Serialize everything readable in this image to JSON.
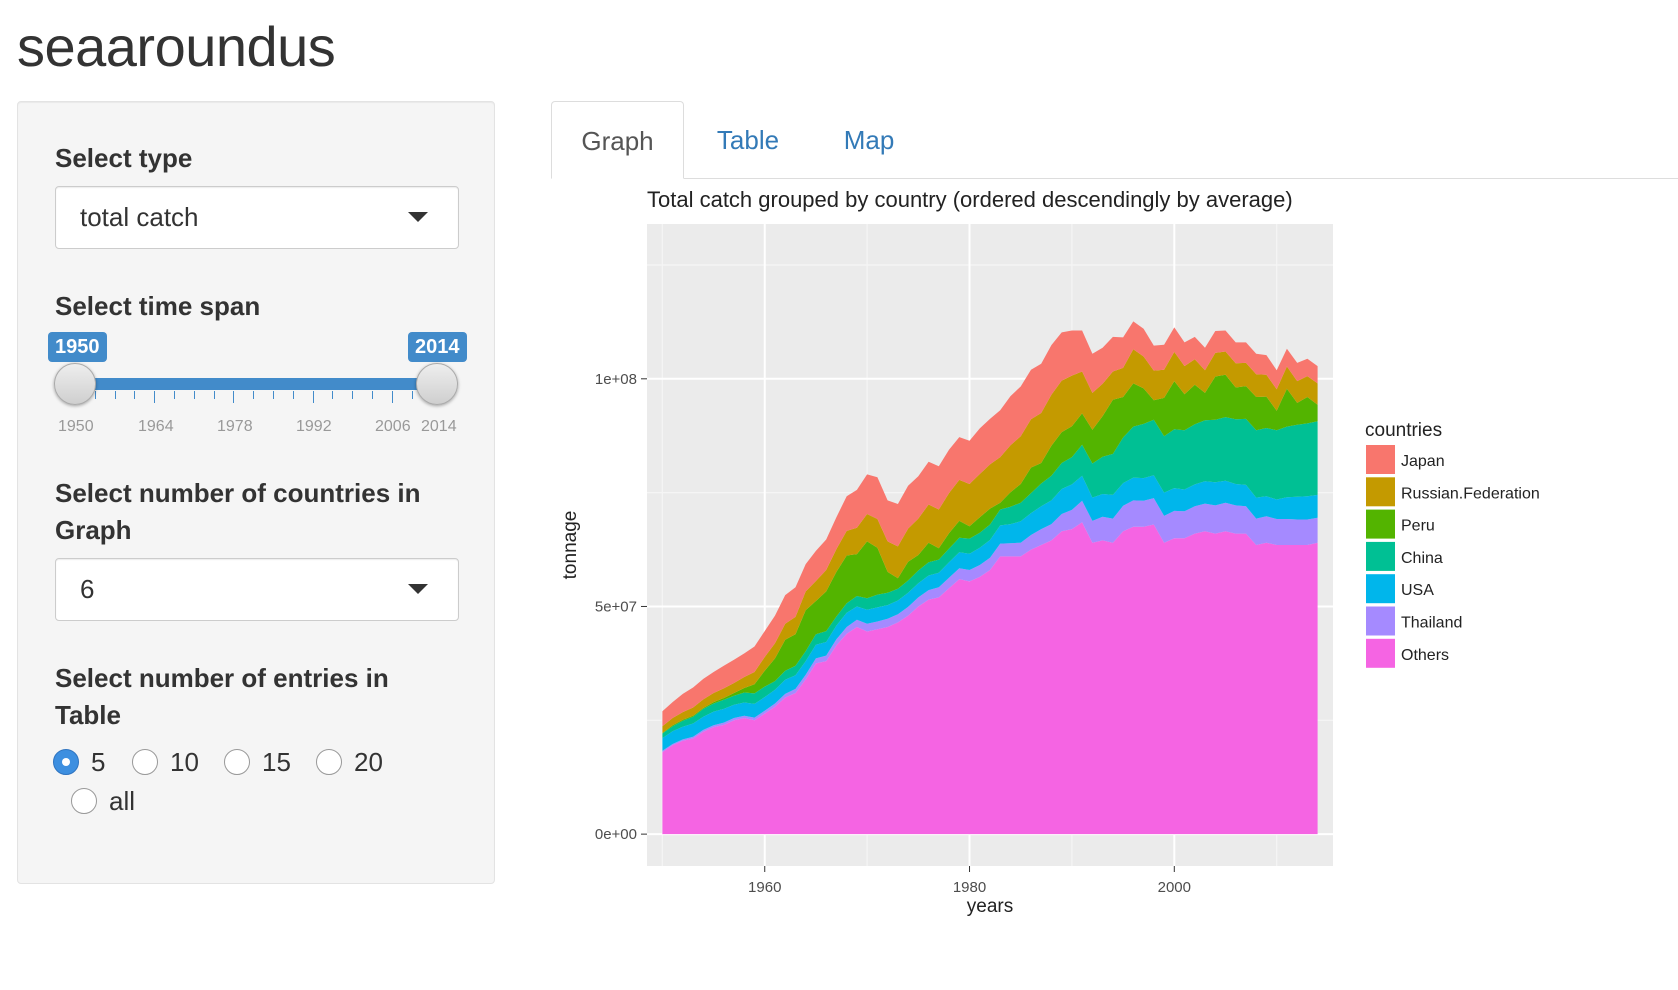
{
  "app": {
    "title": "seaaroundus"
  },
  "sidebar": {
    "type_label": "Select type",
    "type_value": "total catch",
    "timespan_label": "Select time span",
    "slider": {
      "min_label": "1950",
      "max_label": "2014",
      "range": [
        1950,
        2014
      ],
      "tick_labels": [
        "1950",
        "1964",
        "1978",
        "1992",
        "2006",
        "2014"
      ]
    },
    "countries_label": "Select number of countries in Graph",
    "countries_value": "6",
    "entries_label": "Select number of entries in Table",
    "entries_options": [
      "5",
      "10",
      "15",
      "20",
      "all"
    ],
    "entries_selected": "5"
  },
  "tabs": [
    {
      "label": "Graph",
      "active": true
    },
    {
      "label": "Table",
      "active": false
    },
    {
      "label": "Map",
      "active": false
    }
  ],
  "chart_data": {
    "type": "area",
    "stacked": true,
    "title": "Total catch grouped by country (ordered descendingly by average)",
    "xlabel": "years",
    "ylabel": "tonnage",
    "xlim": [
      1948.5,
      2015.5
    ],
    "ylim": [
      -7000000,
      134000000
    ],
    "x_ticks": [
      "1960",
      "1980",
      "2000"
    ],
    "y_ticks": [
      "0e+00",
      "5e+07",
      "1e+08"
    ],
    "grid": true,
    "legend_title": "countries",
    "legend_position": "right",
    "x": [
      1950,
      1951,
      1952,
      1953,
      1954,
      1955,
      1956,
      1957,
      1958,
      1959,
      1960,
      1961,
      1962,
      1963,
      1964,
      1965,
      1966,
      1967,
      1968,
      1969,
      1970,
      1971,
      1972,
      1973,
      1974,
      1975,
      1976,
      1977,
      1978,
      1979,
      1980,
      1981,
      1982,
      1983,
      1984,
      1985,
      1986,
      1987,
      1988,
      1989,
      1990,
      1991,
      1992,
      1993,
      1994,
      1995,
      1996,
      1997,
      1998,
      1999,
      2000,
      2001,
      2002,
      2003,
      2004,
      2005,
      2006,
      2007,
      2008,
      2009,
      2010,
      2011,
      2012,
      2013,
      2014
    ],
    "series": [
      {
        "name": "Others",
        "color": "#f564e3",
        "values": [
          18000000,
          19500000,
          20500000,
          21000000,
          22500000,
          23500000,
          24000000,
          25000000,
          25500000,
          25000000,
          26500000,
          28000000,
          30000000,
          31000000,
          34000000,
          37500000,
          38000000,
          41500000,
          44000000,
          45500000,
          44500000,
          45000000,
          45500000,
          46500000,
          48000000,
          50000000,
          51500000,
          52000000,
          54000000,
          56000000,
          55500000,
          56500000,
          58000000,
          61000000,
          61000000,
          61000000,
          62500000,
          63500000,
          64500000,
          66500000,
          67000000,
          68500000,
          64000000,
          64500000,
          64000000,
          66500000,
          67500000,
          67500000,
          68000000,
          64000000,
          65000000,
          65000000,
          66000000,
          66500000,
          66000000,
          66500000,
          66000000,
          66000000,
          63500000,
          64000000,
          63500000,
          63500000,
          63500000,
          63500000,
          64000000
        ]
      },
      {
        "name": "Thailand",
        "color": "#a58aff",
        "values": [
          300000,
          300000,
          300000,
          400000,
          400000,
          400000,
          500000,
          500000,
          500000,
          600000,
          600000,
          700000,
          800000,
          900000,
          1000000,
          1100000,
          1200000,
          1300000,
          1500000,
          1600000,
          1700000,
          1700000,
          1800000,
          1800000,
          1900000,
          2000000,
          2100000,
          2200000,
          2300000,
          2400000,
          2500000,
          2600000,
          2700000,
          2800000,
          2900000,
          3000000,
          3200000,
          3500000,
          3600000,
          3800000,
          4200000,
          4700000,
          4800000,
          5200000,
          5300000,
          5600000,
          5800000,
          5700000,
          5800000,
          5900000,
          6000000,
          5900000,
          6000000,
          6100000,
          6200000,
          6300000,
          6200000,
          6000000,
          5800000,
          5800000,
          5700000,
          5700000,
          5600000,
          5600000,
          5500000
        ]
      },
      {
        "name": "USA",
        "color": "#00b6eb",
        "values": [
          2800000,
          2800000,
          2800000,
          2900000,
          2900000,
          3000000,
          3000000,
          2900000,
          2900000,
          3000000,
          3000000,
          3000000,
          3100000,
          3000000,
          3000000,
          3000000,
          3000000,
          3000000,
          3100000,
          2900000,
          3100000,
          3100000,
          3000000,
          3000000,
          3100000,
          3100000,
          3200000,
          3200000,
          3400000,
          3500000,
          3600000,
          3800000,
          3900000,
          4000000,
          4200000,
          4700000,
          4800000,
          5000000,
          5200000,
          5500000,
          5600000,
          5500000,
          5100000,
          5000000,
          5200000,
          5000000,
          5000000,
          5000000,
          5000000,
          5100000,
          5000000,
          4800000,
          4800000,
          4900000,
          5100000,
          4800000,
          4700000,
          4700000,
          4600000,
          4400000,
          4300000,
          4800000,
          5000000,
          5100000,
          5000000
        ]
      },
      {
        "name": "China",
        "color": "#00c094",
        "values": [
          1000000,
          1100000,
          1300000,
          1500000,
          1700000,
          1800000,
          2000000,
          2000000,
          2200000,
          2300000,
          2300000,
          1900000,
          2000000,
          2100000,
          2200000,
          2300000,
          2400000,
          2000000,
          2100000,
          2300000,
          2500000,
          2800000,
          2700000,
          2600000,
          2700000,
          2800000,
          2900000,
          2900000,
          3000000,
          3200000,
          3300000,
          3300000,
          3400000,
          3500000,
          3800000,
          4100000,
          4400000,
          5000000,
          5400000,
          5700000,
          6000000,
          6800000,
          7500000,
          8200000,
          9000000,
          10000000,
          11200000,
          11900000,
          12200000,
          12400000,
          12900000,
          13000000,
          13200000,
          13400000,
          13700000,
          14000000,
          14200000,
          14500000,
          14800000,
          15000000,
          15200000,
          15500000,
          15800000,
          16000000,
          16200000
        ]
      },
      {
        "name": "Peru",
        "color": "#53b400",
        "values": [
          100000,
          200000,
          200000,
          200000,
          200000,
          300000,
          400000,
          600000,
          1000000,
          2000000,
          3500000,
          5000000,
          6800000,
          6900000,
          9000000,
          7300000,
          8700000,
          9800000,
          10500000,
          9200000,
          12500000,
          10300000,
          4600000,
          2300000,
          4100000,
          3400000,
          4300000,
          2500000,
          3400000,
          3700000,
          2700000,
          3400000,
          3500000,
          1500000,
          3200000,
          4100000,
          5600000,
          4500000,
          6600000,
          6800000,
          6800000,
          6900000,
          7400000,
          8900000,
          11900000,
          8900000,
          9500000,
          7800000,
          4300000,
          8400000,
          10600000,
          7900000,
          8700000,
          6000000,
          9500000,
          9300000,
          7000000,
          7200000,
          7300000,
          6900000,
          4300000,
          8300000,
          4800000,
          5800000,
          3600000
        ]
      },
      {
        "name": "Russian.Federation",
        "color": "#c49a00",
        "values": [
          1500000,
          1600000,
          1700000,
          1800000,
          1900000,
          2000000,
          2100000,
          2200000,
          2400000,
          2700000,
          3000000,
          3300000,
          3500000,
          3800000,
          4100000,
          4400000,
          4700000,
          5000000,
          5400000,
          5800000,
          6000000,
          6300000,
          6700000,
          7000000,
          7300000,
          8000000,
          8400000,
          8500000,
          8800000,
          9000000,
          9300000,
          9500000,
          9700000,
          10000000,
          10300000,
          10500000,
          10600000,
          11000000,
          11200000,
          11300000,
          11100000,
          9200000,
          8100000,
          7100000,
          6200000,
          6400000,
          7500000,
          7000000,
          6500000,
          6200000,
          6400000,
          6200000,
          5600000,
          5000000,
          5200000,
          5100000,
          5300000,
          5100000,
          5000000,
          4800000,
          4700000,
          4900000,
          4800000,
          4600000,
          4700000
        ]
      },
      {
        "name": "Japan",
        "color": "#f8766d",
        "values": [
          3300000,
          3500000,
          4000000,
          4400000,
          4500000,
          4600000,
          5000000,
          5100000,
          5200000,
          5600000,
          5700000,
          6100000,
          6300000,
          6500000,
          6000000,
          6600000,
          6700000,
          7000000,
          7600000,
          8300000,
          8700000,
          9200000,
          9000000,
          9300000,
          9400000,
          9300000,
          9400000,
          9500000,
          9500000,
          9400000,
          9500000,
          10000000,
          10000000,
          10300000,
          10800000,
          10900000,
          10900000,
          10800000,
          10900000,
          10600000,
          9900000,
          9000000,
          8600000,
          7900000,
          7600000,
          6700000,
          6100000,
          6100000,
          5500000,
          5500000,
          5400000,
          5200000,
          4900000,
          4900000,
          4800000,
          4600000,
          4600000,
          4500000,
          4500000,
          4300000,
          4200000,
          3900000,
          4000000,
          3800000,
          3800000
        ]
      }
    ],
    "legend_order": [
      "Japan",
      "Russian.Federation",
      "Peru",
      "China",
      "USA",
      "Thailand",
      "Others"
    ]
  }
}
